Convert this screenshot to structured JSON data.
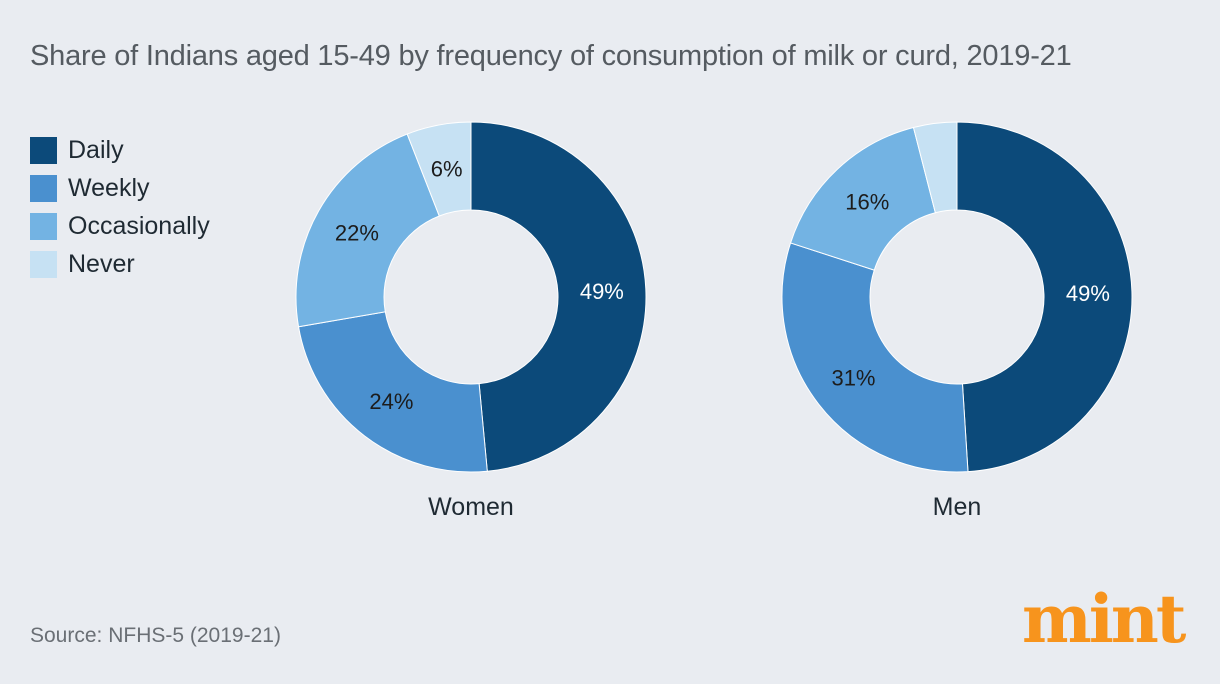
{
  "title": "Share of Indians aged 15-49 by frequency of consumption of milk or curd, 2019-21",
  "source": "Source: NFHS-5 (2019-21)",
  "logo_text": "mint",
  "colors": {
    "daily": "#0c4a7a",
    "weekly": "#4a90cf",
    "occasionally": "#73b3e3",
    "never": "#c6e1f3"
  },
  "legend": [
    {
      "label": "Daily",
      "color": "#0c4a7a"
    },
    {
      "label": "Weekly",
      "color": "#4a90cf"
    },
    {
      "label": "Occasionally",
      "color": "#73b3e3"
    },
    {
      "label": "Never",
      "color": "#c6e1f3"
    }
  ],
  "chart_data": [
    {
      "type": "pie",
      "donut": true,
      "caption": "Women",
      "labels": [
        "Daily",
        "Weekly",
        "Occasionally",
        "Never"
      ],
      "values": [
        49,
        24,
        22,
        6
      ],
      "value_labels": [
        "49%",
        "24%",
        "22%",
        "6%"
      ]
    },
    {
      "type": "pie",
      "donut": true,
      "caption": "Men",
      "labels": [
        "Daily",
        "Weekly",
        "Occasionally",
        "Never"
      ],
      "values": [
        49,
        31,
        16,
        4
      ],
      "value_labels": [
        "49%",
        "31%",
        "16%",
        ""
      ]
    }
  ]
}
